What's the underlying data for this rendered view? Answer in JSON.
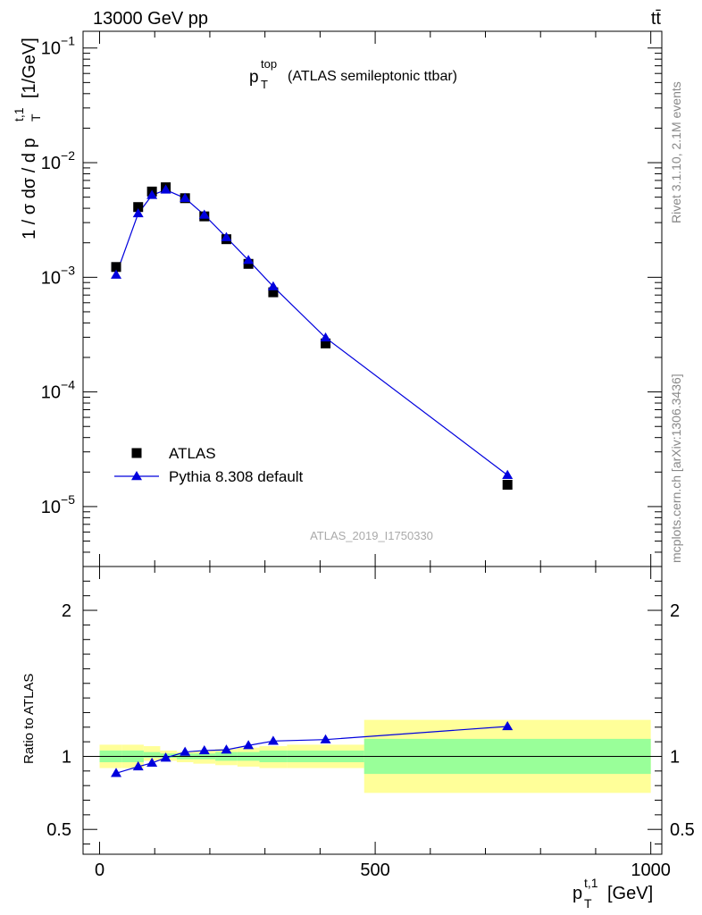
{
  "header": {
    "energy_label": "13000 GeV pp",
    "process_label": "tt̄"
  },
  "side_labels": {
    "rivet": "Rivet 3.1.10,  2.1M events",
    "mcplots": "mcplots.cern.ch [arXiv:1306.3436]"
  },
  "analysis_id": "ATLAS_2019_I1750330",
  "chart_data": [
    {
      "type": "scatter",
      "title": "p_T^top (ATLAS semileptonic ttbar)",
      "title_main": "p",
      "title_sup": "top",
      "title_sub": "T",
      "title_rest": "(ATLAS semileptonic ttbar)",
      "ylabel": "1 / σ dσ / d p_T^t,1 [1/GeV]",
      "ylabel_main": "1 / σ dσ / d p",
      "ylabel_sub": "T",
      "ylabel_sup": "t,1",
      "ylabel_unit": "[1/GeV]",
      "y_scale": "log",
      "xlim": [
        -30,
        1020
      ],
      "ylim": [
        3e-06,
        0.14
      ],
      "y_ticks": [
        {
          "value": 0.1,
          "base": "10",
          "exp": "−1"
        },
        {
          "value": 0.01,
          "base": "10",
          "exp": "−2"
        },
        {
          "value": 0.001,
          "base": "10",
          "exp": "−3"
        },
        {
          "value": 0.0001,
          "base": "10",
          "exp": "−4"
        },
        {
          "value": 1e-05,
          "base": "10",
          "exp": "−5"
        }
      ],
      "legend_position": "bottom-left",
      "series": [
        {
          "name": "ATLAS",
          "marker": "square",
          "color": "#000000",
          "x": [
            30,
            70,
            95,
            120,
            155,
            190,
            230,
            270,
            315,
            410,
            740
          ],
          "y": [
            0.00123,
            0.0041,
            0.0056,
            0.0061,
            0.0049,
            0.0034,
            0.00215,
            0.00131,
            0.00074,
            0.000265,
            1.55e-05
          ]
        },
        {
          "name": "Pythia 8.308 default",
          "marker": "triangle",
          "color": "#0000dd",
          "x": [
            30,
            70,
            95,
            120,
            155,
            190,
            230,
            270,
            315,
            410,
            740
          ],
          "y": [
            0.00105,
            0.0036,
            0.0052,
            0.0058,
            0.0049,
            0.0035,
            0.00223,
            0.00141,
            0.00083,
            0.000297,
            1.88e-05
          ]
        }
      ]
    },
    {
      "type": "scatter",
      "xlabel": "p_T^t,1 [GeV]",
      "xlabel_main": "p",
      "xlabel_sub": "T",
      "xlabel_sup": "t,1",
      "xlabel_unit": "[GeV]",
      "ylabel": "Ratio to ATLAS",
      "xlim": [
        -30,
        1020
      ],
      "ylim": [
        0.33,
        2.3
      ],
      "x_ticks": [
        0,
        500,
        1000
      ],
      "y_ticks": [
        0.5,
        1,
        2
      ],
      "reference_line": 1,
      "uncertainty_bands": {
        "edges": [
          0,
          40,
          80,
          110,
          140,
          170,
          210,
          250,
          290,
          340,
          480,
          1000
        ],
        "yellow_low": [
          0.92,
          0.92,
          0.97,
          0.97,
          0.96,
          0.95,
          0.94,
          0.93,
          0.92,
          0.92,
          0.75
        ],
        "yellow_high": [
          1.08,
          1.08,
          1.07,
          1.04,
          1.03,
          1.04,
          1.05,
          1.06,
          1.07,
          1.08,
          1.25
        ],
        "green_low": [
          0.96,
          0.96,
          0.99,
          0.99,
          0.98,
          0.98,
          0.97,
          0.97,
          0.96,
          0.96,
          0.88
        ],
        "green_high": [
          1.04,
          1.04,
          1.03,
          1.02,
          1.02,
          1.02,
          1.03,
          1.03,
          1.04,
          1.04,
          1.12
        ],
        "yellow_color": "#ffff99",
        "green_color": "#99ff99"
      },
      "series": [
        {
          "name": "Pythia 8.308 default",
          "marker": "triangle",
          "color": "#0000dd",
          "x": [
            30,
            70,
            95,
            120,
            155,
            190,
            230,
            270,
            315,
            410,
            740
          ],
          "y": [
            0.885,
            0.93,
            0.955,
            0.99,
            1.03,
            1.04,
            1.045,
            1.075,
            1.105,
            1.115,
            1.205
          ]
        }
      ]
    }
  ]
}
